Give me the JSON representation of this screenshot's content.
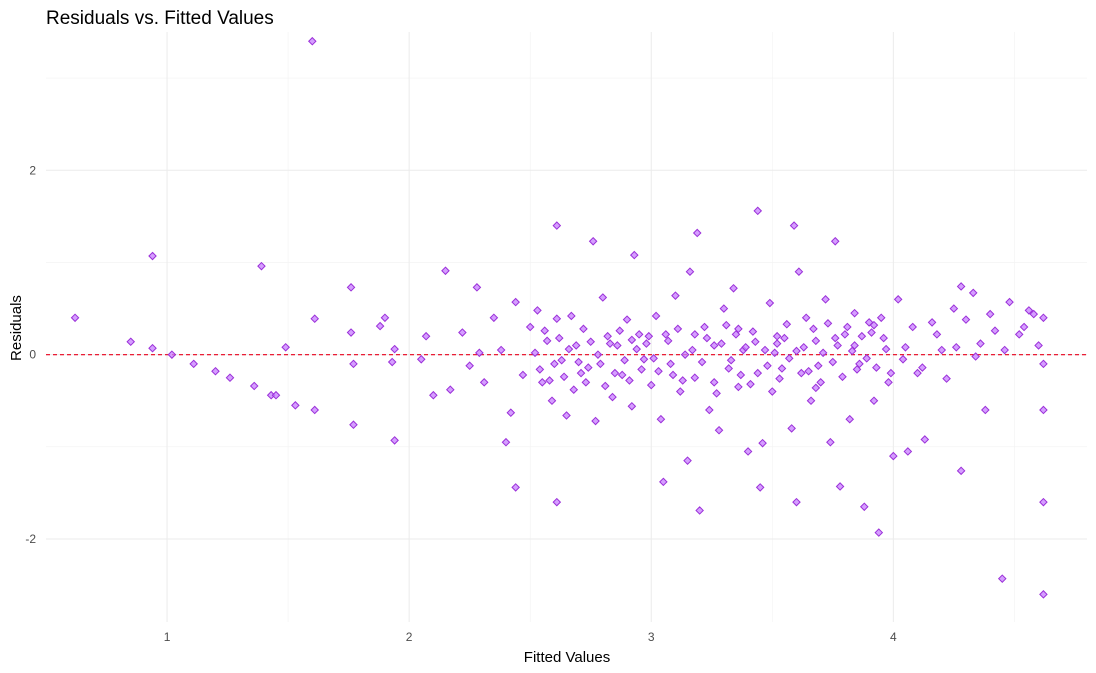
{
  "chart_data": {
    "type": "scatter",
    "title": "Residuals vs. Fitted Values",
    "xlabel": "Fitted Values",
    "ylabel": "Residuals",
    "xlim": [
      0.5,
      4.8
    ],
    "ylim": [
      -2.9,
      3.5
    ],
    "x_ticks": [
      1,
      2,
      3,
      4
    ],
    "y_ticks": [
      -2,
      0,
      2
    ],
    "x_tick_labels": [
      "1",
      "2",
      "3",
      "4"
    ],
    "y_tick_labels": [
      "-2",
      "0",
      "2"
    ],
    "grid": true,
    "reference_line": {
      "y": 0,
      "style": "dashed",
      "color": "#e8001c"
    },
    "marker": {
      "shape": "diamond",
      "fill": "#c77dff",
      "stroke": "#9b30d9"
    },
    "points": [
      [
        0.62,
        0.4
      ],
      [
        0.85,
        0.14
      ],
      [
        0.94,
        1.07
      ],
      [
        0.94,
        0.07
      ],
      [
        1.02,
        0.0
      ],
      [
        1.11,
        -0.1
      ],
      [
        1.2,
        -0.18
      ],
      [
        1.26,
        -0.25
      ],
      [
        1.36,
        -0.34
      ],
      [
        1.39,
        0.96
      ],
      [
        1.43,
        -0.44
      ],
      [
        1.45,
        -0.44
      ],
      [
        1.49,
        0.08
      ],
      [
        1.53,
        -0.55
      ],
      [
        1.6,
        3.4
      ],
      [
        1.61,
        0.39
      ],
      [
        1.61,
        -0.6
      ],
      [
        1.76,
        0.73
      ],
      [
        1.76,
        0.24
      ],
      [
        1.77,
        -0.1
      ],
      [
        1.77,
        -0.76
      ],
      [
        1.88,
        0.31
      ],
      [
        1.9,
        0.4
      ],
      [
        1.93,
        -0.08
      ],
      [
        1.94,
        0.06
      ],
      [
        1.94,
        -0.93
      ],
      [
        2.05,
        -0.05
      ],
      [
        2.07,
        0.2
      ],
      [
        2.1,
        -0.44
      ],
      [
        2.15,
        0.91
      ],
      [
        2.17,
        -0.38
      ],
      [
        2.22,
        0.24
      ],
      [
        2.25,
        -0.12
      ],
      [
        2.28,
        0.73
      ],
      [
        2.29,
        0.02
      ],
      [
        2.31,
        -0.3
      ],
      [
        2.35,
        0.4
      ],
      [
        2.38,
        0.05
      ],
      [
        2.4,
        -0.95
      ],
      [
        2.42,
        -0.63
      ],
      [
        2.44,
        0.57
      ],
      [
        2.44,
        -1.44
      ],
      [
        2.47,
        -0.22
      ],
      [
        2.5,
        0.3
      ],
      [
        2.53,
        0.48
      ],
      [
        2.55,
        -0.3
      ],
      [
        2.57,
        0.15
      ],
      [
        2.59,
        -0.5
      ],
      [
        2.61,
        1.4
      ],
      [
        2.61,
        0.39
      ],
      [
        2.61,
        -1.6
      ],
      [
        2.65,
        -0.66
      ],
      [
        2.67,
        0.42
      ],
      [
        2.7,
        -0.08
      ],
      [
        2.73,
        -0.3
      ],
      [
        2.76,
        1.23
      ],
      [
        2.77,
        -0.72
      ],
      [
        2.8,
        0.62
      ],
      [
        2.82,
        0.2
      ],
      [
        2.84,
        -0.46
      ],
      [
        2.86,
        0.1
      ],
      [
        2.88,
        -0.22
      ],
      [
        2.9,
        0.38
      ],
      [
        2.92,
        -0.56
      ],
      [
        2.93,
        1.08
      ],
      [
        2.95,
        0.22
      ],
      [
        2.97,
        -0.05
      ],
      [
        3.0,
        -0.33
      ],
      [
        3.02,
        0.42
      ],
      [
        3.04,
        -0.7
      ],
      [
        3.05,
        -1.38
      ],
      [
        3.07,
        0.15
      ],
      [
        3.08,
        -0.1
      ],
      [
        3.1,
        0.64
      ],
      [
        3.12,
        -0.4
      ],
      [
        3.14,
        0.0
      ],
      [
        3.15,
        -1.15
      ],
      [
        3.16,
        0.9
      ],
      [
        3.18,
        -0.25
      ],
      [
        3.19,
        1.32
      ],
      [
        3.2,
        -1.69
      ],
      [
        3.22,
        0.3
      ],
      [
        3.24,
        -0.6
      ],
      [
        3.26,
        0.1
      ],
      [
        3.28,
        -0.82
      ],
      [
        3.3,
        0.5
      ],
      [
        3.32,
        -0.15
      ],
      [
        3.34,
        0.72
      ],
      [
        3.36,
        -0.35
      ],
      [
        3.38,
        0.05
      ],
      [
        3.4,
        -1.05
      ],
      [
        3.42,
        0.25
      ],
      [
        3.44,
        1.56
      ],
      [
        3.45,
        -1.44
      ],
      [
        3.46,
        -0.96
      ],
      [
        3.47,
        0.05
      ],
      [
        3.49,
        0.56
      ],
      [
        3.5,
        -0.4
      ],
      [
        3.52,
        0.2
      ],
      [
        3.54,
        -0.15
      ],
      [
        3.56,
        0.33
      ],
      [
        3.58,
        -0.8
      ],
      [
        3.59,
        1.4
      ],
      [
        3.6,
        -1.6
      ],
      [
        3.61,
        0.9
      ],
      [
        3.62,
        -0.2
      ],
      [
        3.64,
        0.4
      ],
      [
        3.66,
        -0.5
      ],
      [
        3.68,
        0.15
      ],
      [
        3.7,
        -0.3
      ],
      [
        3.72,
        0.6
      ],
      [
        3.74,
        -0.95
      ],
      [
        3.76,
        1.23
      ],
      [
        3.78,
        -1.43
      ],
      [
        3.8,
        0.22
      ],
      [
        3.82,
        -0.7
      ],
      [
        3.84,
        0.45
      ],
      [
        3.86,
        -0.1
      ],
      [
        3.88,
        -1.65
      ],
      [
        3.9,
        0.35
      ],
      [
        3.92,
        -0.5
      ],
      [
        3.94,
        -1.93
      ],
      [
        3.96,
        0.18
      ],
      [
        3.98,
        -0.3
      ],
      [
        4.0,
        -1.1
      ],
      [
        4.02,
        0.6
      ],
      [
        4.04,
        -0.05
      ],
      [
        4.06,
        -1.05
      ],
      [
        4.08,
        0.3
      ],
      [
        4.1,
        -0.2
      ],
      [
        4.13,
        -0.92
      ],
      [
        4.16,
        0.35
      ],
      [
        4.2,
        0.05
      ],
      [
        4.25,
        0.5
      ],
      [
        4.28,
        0.74
      ],
      [
        4.28,
        -1.26
      ],
      [
        4.3,
        0.38
      ],
      [
        4.33,
        0.67
      ],
      [
        4.36,
        0.12
      ],
      [
        4.38,
        -0.6
      ],
      [
        4.42,
        0.26
      ],
      [
        4.45,
        -2.43
      ],
      [
        4.48,
        0.57
      ],
      [
        4.52,
        0.22
      ],
      [
        4.56,
        0.48
      ],
      [
        4.6,
        0.1
      ],
      [
        4.62,
        0.4
      ],
      [
        4.62,
        -0.1
      ],
      [
        4.62,
        -0.6
      ],
      [
        4.62,
        -1.6
      ],
      [
        4.62,
        -2.6
      ],
      [
        2.98,
        0.12
      ],
      [
        3.03,
        -0.18
      ],
      [
        3.11,
        0.28
      ],
      [
        3.13,
        -0.28
      ],
      [
        3.17,
        0.05
      ],
      [
        3.21,
        -0.08
      ],
      [
        3.23,
        0.18
      ],
      [
        3.27,
        -0.42
      ],
      [
        3.29,
        0.12
      ],
      [
        3.31,
        0.32
      ],
      [
        3.33,
        -0.06
      ],
      [
        3.35,
        0.22
      ],
      [
        3.37,
        -0.22
      ],
      [
        3.39,
        0.08
      ],
      [
        3.41,
        -0.32
      ],
      [
        3.43,
        0.14
      ],
      [
        3.48,
        -0.12
      ],
      [
        3.51,
        0.02
      ],
      [
        3.53,
        -0.26
      ],
      [
        3.55,
        0.18
      ],
      [
        3.57,
        -0.04
      ],
      [
        3.63,
        0.08
      ],
      [
        3.65,
        -0.18
      ],
      [
        3.67,
        0.28
      ],
      [
        3.69,
        -0.12
      ],
      [
        3.71,
        0.02
      ],
      [
        3.73,
        0.34
      ],
      [
        3.75,
        -0.08
      ],
      [
        3.77,
        0.1
      ],
      [
        3.79,
        -0.24
      ],
      [
        3.81,
        0.3
      ],
      [
        3.83,
        0.04
      ],
      [
        3.85,
        -0.16
      ],
      [
        3.87,
        0.2
      ],
      [
        3.89,
        -0.04
      ],
      [
        3.91,
        0.24
      ],
      [
        3.93,
        -0.14
      ],
      [
        3.95,
        0.4
      ],
      [
        3.97,
        0.06
      ],
      [
        3.99,
        -0.2
      ],
      [
        2.6,
        -0.1
      ],
      [
        2.62,
        0.18
      ],
      [
        2.64,
        -0.24
      ],
      [
        2.66,
        0.06
      ],
      [
        2.68,
        -0.38
      ],
      [
        2.72,
        0.28
      ],
      [
        2.74,
        -0.14
      ],
      [
        2.78,
        0.0
      ],
      [
        2.81,
        -0.34
      ],
      [
        2.83,
        0.12
      ],
      [
        2.85,
        -0.2
      ],
      [
        2.87,
        0.26
      ],
      [
        2.89,
        -0.06
      ],
      [
        2.91,
        -0.28
      ],
      [
        2.94,
        0.06
      ],
      [
        2.96,
        -0.16
      ],
      [
        2.99,
        0.2
      ],
      [
        3.01,
        -0.04
      ],
      [
        3.06,
        0.22
      ],
      [
        3.09,
        -0.22
      ],
      [
        2.52,
        0.02
      ],
      [
        2.54,
        -0.16
      ],
      [
        2.56,
        0.26
      ],
      [
        2.58,
        -0.28
      ],
      [
        2.63,
        -0.06
      ],
      [
        2.69,
        0.1
      ],
      [
        2.71,
        -0.2
      ],
      [
        2.75,
        0.14
      ],
      [
        2.79,
        -0.1
      ],
      [
        2.92,
        0.16
      ],
      [
        3.18,
        0.22
      ],
      [
        3.26,
        -0.3
      ],
      [
        3.36,
        0.28
      ],
      [
        3.44,
        -0.2
      ],
      [
        3.52,
        0.12
      ],
      [
        3.6,
        0.04
      ],
      [
        3.68,
        -0.36
      ],
      [
        3.76,
        0.18
      ],
      [
        3.84,
        0.1
      ],
      [
        3.92,
        0.32
      ],
      [
        4.05,
        0.08
      ],
      [
        4.12,
        -0.14
      ],
      [
        4.18,
        0.22
      ],
      [
        4.22,
        -0.26
      ],
      [
        4.26,
        0.08
      ],
      [
        4.34,
        -0.02
      ],
      [
        4.4,
        0.44
      ],
      [
        4.46,
        0.05
      ],
      [
        4.54,
        0.3
      ],
      [
        4.58,
        0.44
      ]
    ]
  }
}
